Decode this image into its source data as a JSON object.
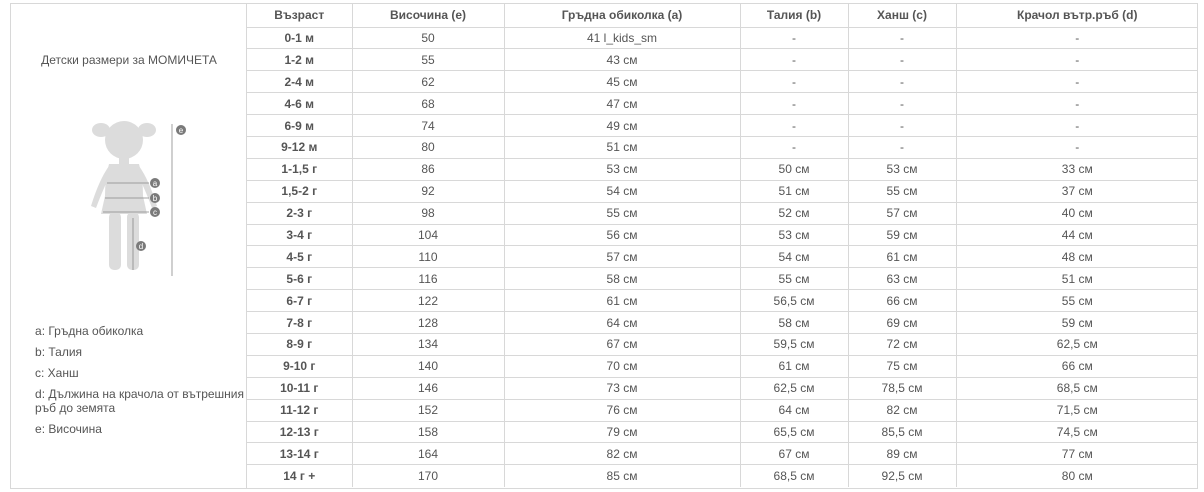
{
  "panel": {
    "title": "Детски размери за МОМИЧЕТА",
    "figure_markers": [
      "e",
      "a",
      "b",
      "c",
      "d"
    ],
    "legend": [
      {
        "key": "a",
        "text": ": Гръдна обиколка"
      },
      {
        "key": "b",
        "text": ": Талия"
      },
      {
        "key": "c",
        "text": ": Ханш"
      },
      {
        "key": "d",
        "text": ": Дължина на крачола от вътрешния ръб до земята"
      },
      {
        "key": "e",
        "text": ": Височина"
      }
    ]
  },
  "table": {
    "headers": [
      "Възраст",
      "Височина (e)",
      "Гръдна обиколка (a)",
      "Талия (b)",
      "Ханш (c)",
      "Крачол вътр.ръб (d)"
    ],
    "rows": [
      [
        "0-1 м",
        "50",
        "41 l_kids_sm",
        "-",
        "-",
        "-"
      ],
      [
        "1-2 м",
        "55",
        "43 см",
        "-",
        "-",
        "-"
      ],
      [
        "2-4 м",
        "62",
        "45 см",
        "-",
        "-",
        "-"
      ],
      [
        "4-6 м",
        "68",
        "47 см",
        "-",
        "-",
        "-"
      ],
      [
        "6-9 м",
        "74",
        "49 см",
        "-",
        "-",
        "-"
      ],
      [
        "9-12 м",
        "80",
        "51 см",
        "-",
        "-",
        "-"
      ],
      [
        "1-1,5 г",
        "86",
        "53 см",
        "50 см",
        "53 см",
        "33 см"
      ],
      [
        "1,5-2 г",
        "92",
        "54 см",
        "51 см",
        "55 см",
        "37 см"
      ],
      [
        "2-3 г",
        "98",
        "55 см",
        "52 см",
        "57 см",
        "40 см"
      ],
      [
        "3-4 г",
        "104",
        "56 см",
        "53 см",
        "59 см",
        "44 см"
      ],
      [
        "4-5 г",
        "110",
        "57 см",
        "54 см",
        "61 см",
        "48 см"
      ],
      [
        "5-6 г",
        "116",
        "58 см",
        "55 см",
        "63 см",
        "51 см"
      ],
      [
        "6-7 г",
        "122",
        "61 см",
        "56,5 см",
        "66 см",
        "55 см"
      ],
      [
        "7-8 г",
        "128",
        "64 см",
        "58 см",
        "69 см",
        "59 см"
      ],
      [
        "8-9 г",
        "134",
        "67 см",
        "59,5 см",
        "72 см",
        "62,5 см"
      ],
      [
        "9-10 г",
        "140",
        "70 см",
        "61 см",
        "75 см",
        "66 см"
      ],
      [
        "10-11 г",
        "146",
        "73 см",
        "62,5 см",
        "78,5 см",
        "68,5 см"
      ],
      [
        "11-12 г",
        "152",
        "76 см",
        "64 см",
        "82 см",
        "71,5 см"
      ],
      [
        "12-13 г",
        "158",
        "79 см",
        "65,5 см",
        "85,5 см",
        "74,5 см"
      ],
      [
        "13-14 г",
        "164",
        "82 см",
        "67 см",
        "89 см",
        "77 см"
      ],
      [
        "14 г +",
        "170",
        "85 см",
        "68,5 см",
        "92,5 см",
        "80 см"
      ]
    ]
  },
  "colors": {
    "border": "#d8d8d8",
    "text": "#555555",
    "silhouette": "#dcdcdc",
    "marker": "#7a7a7a"
  }
}
